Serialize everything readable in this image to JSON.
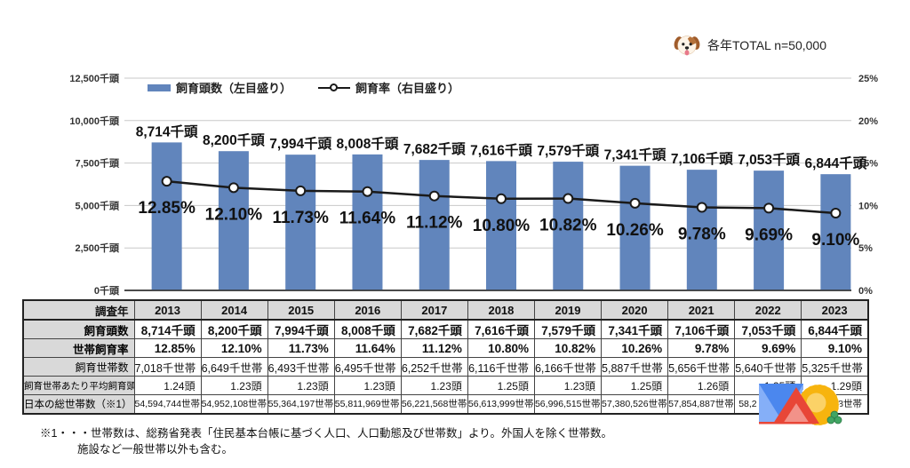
{
  "header": {
    "total_note": "各年TOTAL n=50,000"
  },
  "legend": {
    "bar_label": "飼育頭数（左目盛り）",
    "line_label": "飼育率（右目盛り）"
  },
  "chart_data": {
    "type": "bar+line",
    "categories": [
      "2013",
      "2014",
      "2015",
      "2016",
      "2017",
      "2018",
      "2019",
      "2020",
      "2021",
      "2022",
      "2023"
    ],
    "series": [
      {
        "name": "飼育頭数（左目盛り）",
        "type": "bar",
        "axis": "left",
        "unit": "千頭",
        "values": [
          8714,
          8200,
          7994,
          8008,
          7682,
          7616,
          7579,
          7341,
          7106,
          7053,
          6844
        ],
        "labels": [
          "8,714千頭",
          "8,200千頭",
          "7,994千頭",
          "8,008千頭",
          "7,682千頭",
          "7,616千頭",
          "7,579千頭",
          "7,341千頭",
          "7,106千頭",
          "7,053千頭",
          "6,844千頭"
        ],
        "color": "#6185BC"
      },
      {
        "name": "飼育率（右目盛り）",
        "type": "line",
        "axis": "right",
        "unit": "%",
        "values": [
          12.85,
          12.1,
          11.73,
          11.64,
          11.12,
          10.8,
          10.82,
          10.26,
          9.78,
          9.69,
          9.1
        ],
        "labels": [
          "12.85%",
          "12.10%",
          "11.73%",
          "11.64%",
          "11.12%",
          "10.80%",
          "10.82%",
          "10.26%",
          "9.78%",
          "9.69%",
          "9.10%"
        ],
        "color": "#1a1a1a"
      }
    ],
    "left_axis": {
      "min": 0,
      "max": 12500,
      "ticks": [
        "12,500千頭",
        "10,000千頭",
        "7,500千頭",
        "5,000千頭",
        "2,500千頭",
        "0千頭"
      ]
    },
    "right_axis": {
      "min": 0,
      "max": 25,
      "ticks": [
        "25%",
        "20%",
        "15%",
        "10%",
        "5%",
        "0%"
      ]
    },
    "grid": true,
    "legend_position": "top"
  },
  "table": {
    "col_header_label": "調査年",
    "rows": [
      {
        "label": "飼育頭数",
        "class": "row-count",
        "values": [
          "8,714千頭",
          "8,200千頭",
          "7,994千頭",
          "8,008千頭",
          "7,682千頭",
          "7,616千頭",
          "7,579千頭",
          "7,341千頭",
          "7,106千頭",
          "7,053千頭",
          "6,844千頭"
        ]
      },
      {
        "label": "世帯飼育率",
        "class": "row-rate",
        "values": [
          "12.85%",
          "12.10%",
          "11.73%",
          "11.64%",
          "11.12%",
          "10.80%",
          "10.82%",
          "10.26%",
          "9.78%",
          "9.69%",
          "9.10%"
        ]
      },
      {
        "label": "飼育世帯数",
        "class": "row-households",
        "values": [
          "7,018千世帯",
          "6,649千世帯",
          "6,493千世帯",
          "6,495千世帯",
          "6,252千世帯",
          "6,116千世帯",
          "6,166千世帯",
          "5,887千世帯",
          "5,656千世帯",
          "5,640千世帯",
          "5,325千世帯"
        ]
      },
      {
        "label": "飼育世帯あたり平均飼育頭数",
        "class": "row-avg",
        "values": [
          "1.24頭",
          "1.23頭",
          "1.23頭",
          "1.23頭",
          "1.23頭",
          "1.25頭",
          "1.23頭",
          "1.25頭",
          "1.26頭",
          "1.25頭",
          "1.29頭"
        ]
      },
      {
        "label": "日本の総世帯数（※1）",
        "class": "row-total",
        "values": [
          "54,594,744世帯",
          "54,952,108世帯",
          "55,364,197世帯",
          "55,811,969世帯",
          "56,221,568世帯",
          "56,613,999世帯",
          "56,996,515世帯",
          "57,380,526世帯",
          "57,854,887世帯",
          "58,2",
          "428世帯"
        ],
        "align_left_indices": [
          9
        ]
      }
    ]
  },
  "footnote": {
    "line1": "※1・・・世帯数は、総務省発表「住民基本台帳に基づく人口、人口動態及び世帯数」より。外国人を除く世帯数。",
    "line2": "施設など一般世帯以外も含む。"
  },
  "colors": {
    "bar": "#6185BC",
    "line": "#1a1a1a",
    "grid": "#C8C8C8",
    "axis_text": "#333333",
    "table_header_bg": "#D9D9D9",
    "logo_blue": "#85AFF8",
    "logo_blue_dark": "#4B87EE",
    "logo_red": "#E84637",
    "logo_red_light": "#F29289",
    "logo_yellow": "#F7B40E",
    "logo_yellow_light": "#FBD267",
    "logo_green": "#41A563"
  }
}
